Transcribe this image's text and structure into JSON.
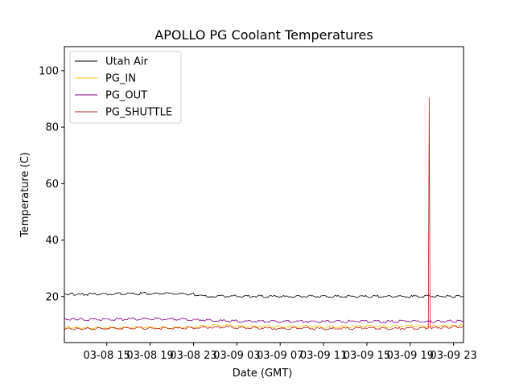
{
  "chart_data": {
    "type": "line",
    "title": "APOLLO PG Coolant Temperatures",
    "xlabel": "Date (GMT)",
    "ylabel": "Temperature (C)",
    "xlim": [
      "2018-03-08 11:05",
      "2018-03-09 23:55"
    ],
    "ylim": [
      3.7,
      108.5
    ],
    "xticks": [
      {
        "value": "2018-03-08 15:00",
        "label": "03-08 15"
      },
      {
        "value": "2018-03-08 19:00",
        "label": "03-08 19"
      },
      {
        "value": "2018-03-08 23:00",
        "label": "03-08 23"
      },
      {
        "value": "2018-03-09 03:00",
        "label": "03-09 03"
      },
      {
        "value": "2018-03-09 07:00",
        "label": "03-09 07"
      },
      {
        "value": "2018-03-09 11:00",
        "label": "03-09 11"
      },
      {
        "value": "2018-03-09 15:00",
        "label": "03-09 15"
      },
      {
        "value": "2018-03-09 19:00",
        "label": "03-09 19"
      },
      {
        "value": "2018-03-09 23:00",
        "label": "03-09 23"
      }
    ],
    "yticks": [
      20,
      40,
      60,
      80,
      100
    ],
    "grid": false,
    "legend": {
      "position": "top-left"
    },
    "series": [
      {
        "name": "Utah Air",
        "color": "#000000",
        "points": [
          [
            "2018-03-08 11:05",
            20.9
          ],
          [
            "2018-03-08 13:00",
            20.8
          ],
          [
            "2018-03-08 15:00",
            20.9
          ],
          [
            "2018-03-08 17:00",
            21.0
          ],
          [
            "2018-03-08 19:00",
            21.1
          ],
          [
            "2018-03-08 21:00",
            21.0
          ],
          [
            "2018-03-08 23:00",
            20.9
          ],
          [
            "2018-03-08 23:15",
            20.2
          ],
          [
            "2018-03-09 01:00",
            20.1
          ],
          [
            "2018-03-09 03:00",
            20.1
          ],
          [
            "2018-03-09 05:00",
            20.1
          ],
          [
            "2018-03-09 07:00",
            20.0
          ],
          [
            "2018-03-09 09:00",
            20.1
          ],
          [
            "2018-03-09 11:00",
            20.0
          ],
          [
            "2018-03-09 13:00",
            20.1
          ],
          [
            "2018-03-09 15:00",
            20.0
          ],
          [
            "2018-03-09 17:00",
            20.1
          ],
          [
            "2018-03-09 19:00",
            20.0
          ],
          [
            "2018-03-09 21:00",
            20.1
          ],
          [
            "2018-03-09 23:55",
            20.1
          ]
        ]
      },
      {
        "name": "PG_IN",
        "color": "#ffbf00",
        "points": [
          [
            "2018-03-08 11:05",
            9.1
          ],
          [
            "2018-03-08 13:00",
            8.9
          ],
          [
            "2018-03-08 15:00",
            9.0
          ],
          [
            "2018-03-08 17:00",
            9.0
          ],
          [
            "2018-03-08 19:00",
            9.1
          ],
          [
            "2018-03-08 21:00",
            9.0
          ],
          [
            "2018-03-08 23:00",
            9.2
          ],
          [
            "2018-03-09 01:00",
            9.8
          ],
          [
            "2018-03-09 03:00",
            9.6
          ],
          [
            "2018-03-09 05:00",
            9.4
          ],
          [
            "2018-03-09 07:00",
            9.3
          ],
          [
            "2018-03-09 09:00",
            9.5
          ],
          [
            "2018-03-09 11:00",
            9.2
          ],
          [
            "2018-03-09 13:00",
            9.3
          ],
          [
            "2018-03-09 15:00",
            9.5
          ],
          [
            "2018-03-09 17:00",
            9.4
          ],
          [
            "2018-03-09 19:00",
            9.6
          ],
          [
            "2018-03-09 21:00",
            9.5
          ],
          [
            "2018-03-09 23:55",
            9.8
          ]
        ]
      },
      {
        "name": "PG_OUT",
        "color": "#800080",
        "points": [
          [
            "2018-03-08 11:05",
            12.0
          ],
          [
            "2018-03-08 13:00",
            11.9
          ],
          [
            "2018-03-08 15:00",
            11.9
          ],
          [
            "2018-03-08 17:00",
            12.0
          ],
          [
            "2018-03-08 19:00",
            12.1
          ],
          [
            "2018-03-08 21:00",
            12.0
          ],
          [
            "2018-03-08 23:00",
            11.9
          ],
          [
            "2018-03-09 01:00",
            11.4
          ],
          [
            "2018-03-09 03:00",
            11.3
          ],
          [
            "2018-03-09 05:00",
            11.2
          ],
          [
            "2018-03-09 07:00",
            11.1
          ],
          [
            "2018-03-09 09:00",
            11.2
          ],
          [
            "2018-03-09 11:00",
            11.1
          ],
          [
            "2018-03-09 13:00",
            11.2
          ],
          [
            "2018-03-09 15:00",
            11.2
          ],
          [
            "2018-03-09 17:00",
            11.1
          ],
          [
            "2018-03-09 19:00",
            11.3
          ],
          [
            "2018-03-09 21:00",
            11.2
          ],
          [
            "2018-03-09 23:55",
            11.4
          ]
        ]
      },
      {
        "name": "PG_SHUTTLE",
        "color": "#b22222",
        "points": [
          [
            "2018-03-08 11:05",
            8.7
          ],
          [
            "2018-03-08 13:00",
            8.6
          ],
          [
            "2018-03-08 15:00",
            8.7
          ],
          [
            "2018-03-08 17:00",
            8.8
          ],
          [
            "2018-03-08 19:00",
            8.8
          ],
          [
            "2018-03-08 21:00",
            8.7
          ],
          [
            "2018-03-08 23:00",
            8.9
          ],
          [
            "2018-03-09 01:00",
            9.2
          ],
          [
            "2018-03-09 03:00",
            9.0
          ],
          [
            "2018-03-09 05:00",
            8.9
          ],
          [
            "2018-03-09 07:00",
            8.6
          ],
          [
            "2018-03-09 09:00",
            8.9
          ],
          [
            "2018-03-09 11:00",
            8.5
          ],
          [
            "2018-03-09 13:00",
            8.7
          ],
          [
            "2018-03-09 15:00",
            8.9
          ],
          [
            "2018-03-09 17:00",
            8.6
          ],
          [
            "2018-03-09 19:00",
            8.8
          ],
          [
            "2018-03-09 20:40",
            8.8
          ],
          [
            "2018-03-09 20:45",
            90.5
          ],
          [
            "2018-03-09 20:50",
            8.9
          ],
          [
            "2018-03-09 21:00",
            8.9
          ],
          [
            "2018-03-09 23:55",
            9.3
          ]
        ]
      }
    ]
  }
}
